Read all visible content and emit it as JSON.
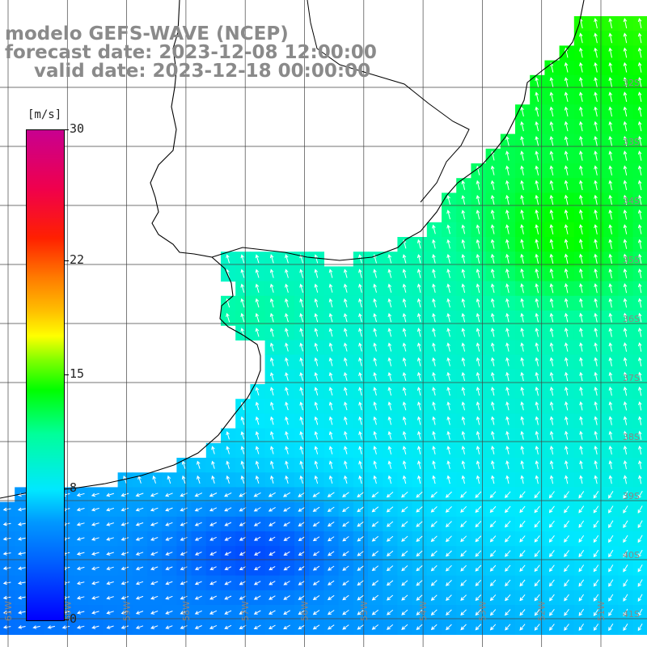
{
  "title": {
    "line1": "modelo GEFS-WAVE (NCEP)",
    "line2": "forecast date: 2023-12-08 12:00:00",
    "line3": "valid date: 2023-12-18 00:00:00"
  },
  "colorbar": {
    "units": "[m/s]",
    "min": 0,
    "max": 30,
    "ticks": [
      {
        "value": 30,
        "label": "30"
      },
      {
        "value": 22,
        "label": "22"
      },
      {
        "value": 15,
        "label": "15"
      },
      {
        "value": 8,
        "label": "8"
      },
      {
        "value": 0,
        "label": "0"
      }
    ]
  },
  "map": {
    "lat_labels": [
      "32S",
      "33S",
      "34S",
      "35S",
      "36S",
      "37S",
      "38S",
      "39S",
      "40S",
      "41S"
    ],
    "lon_labels": [
      "61W",
      "60W",
      "59W",
      "58W",
      "57W",
      "56W",
      "55W",
      "54W",
      "53W",
      "52W",
      "51W"
    ],
    "colors": {
      "land": "#ffffff",
      "coast": "#000000",
      "grid": "#444444",
      "arrow": "#ffffff",
      "label": "#888888"
    }
  }
}
